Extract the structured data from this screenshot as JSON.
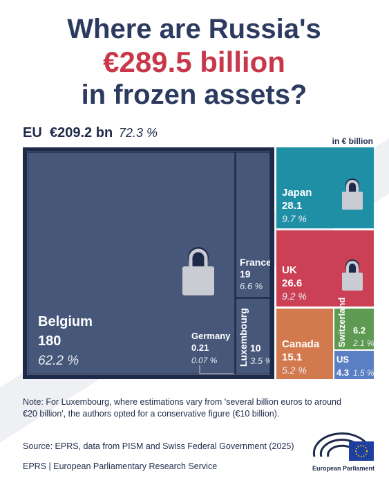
{
  "chart_data": {
    "type": "treemap",
    "title": [
      "Where are Russia's",
      "€289.5 billion",
      "in frozen assets?"
    ],
    "unit_label": "in € billion",
    "group": {
      "name": "EU",
      "value": 209.2,
      "value_label": "€209.2 bn",
      "share": 72.3,
      "share_label": "72.3 %"
    },
    "categories": [
      "Belgium",
      "France",
      "Germany",
      "Luxembourg",
      "Japan",
      "UK",
      "Canada",
      "Switzerland",
      "US"
    ],
    "values": [
      180,
      19,
      0.21,
      10,
      28.1,
      26.6,
      15.1,
      6.2,
      4.3
    ],
    "shares": [
      62.2,
      6.6,
      0.07,
      3.5,
      9.7,
      9.2,
      5.2,
      2.1,
      1.5
    ],
    "share_labels": [
      "62.2 %",
      "6.6 %",
      "0.07 %",
      "3.5 %",
      "9.7 %",
      "9.2 %",
      "5.2 %",
      "2.1 %",
      "1.5 %"
    ],
    "colors": [
      "#47577a",
      "#47577a",
      "#47577a",
      "#47577a",
      "#1f8fa6",
      "#cc4055",
      "#d27a4e",
      "#5e9a52",
      "#5b7fc4"
    ],
    "note": [
      "Note: For Luxembourg, where estimations vary from 'several billion euros to around",
      "€20 billion', the authors opted for a conservative figure (€10 billion)."
    ],
    "source": "Source: EPRS, data from PISM and Swiss Federal Government (2025)",
    "footer": "EPRS | European Parliamentary Research Service",
    "logo_text": "European Parliament"
  }
}
